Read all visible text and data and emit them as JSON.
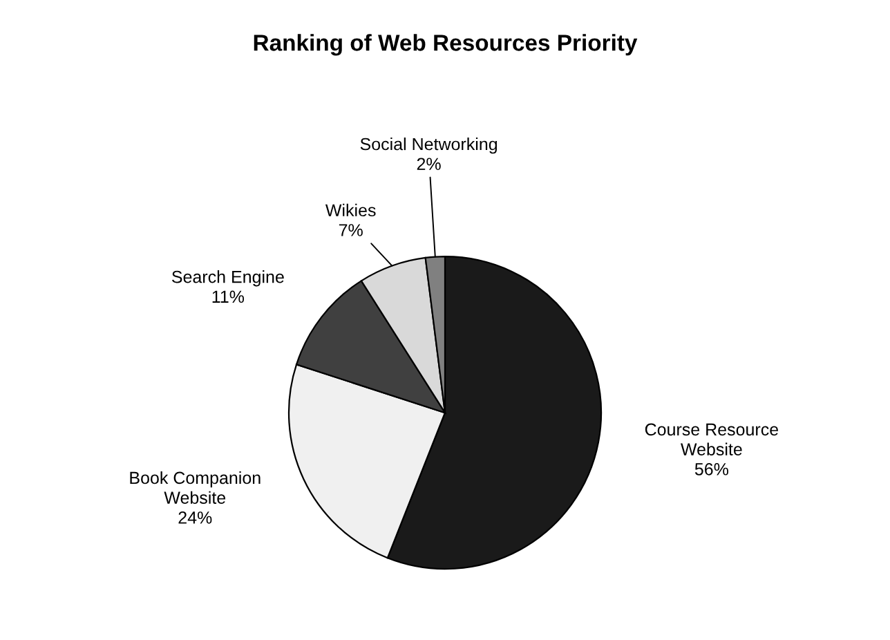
{
  "chart_data": {
    "type": "pie",
    "title": "Ranking of Web Resources Priority",
    "categories": [
      "Course Resource Website",
      "Book Companion Website",
      "Search Engine",
      "Wikies",
      "Social Networking"
    ],
    "values": [
      56,
      24,
      11,
      7,
      2
    ],
    "colors": [
      "#1a1a1a",
      "#f0f0f0",
      "#404040",
      "#d9d9d9",
      "#808080"
    ],
    "value_labels": [
      "56%",
      "24%",
      "11%",
      "7%",
      "2%"
    ],
    "legend": false
  }
}
